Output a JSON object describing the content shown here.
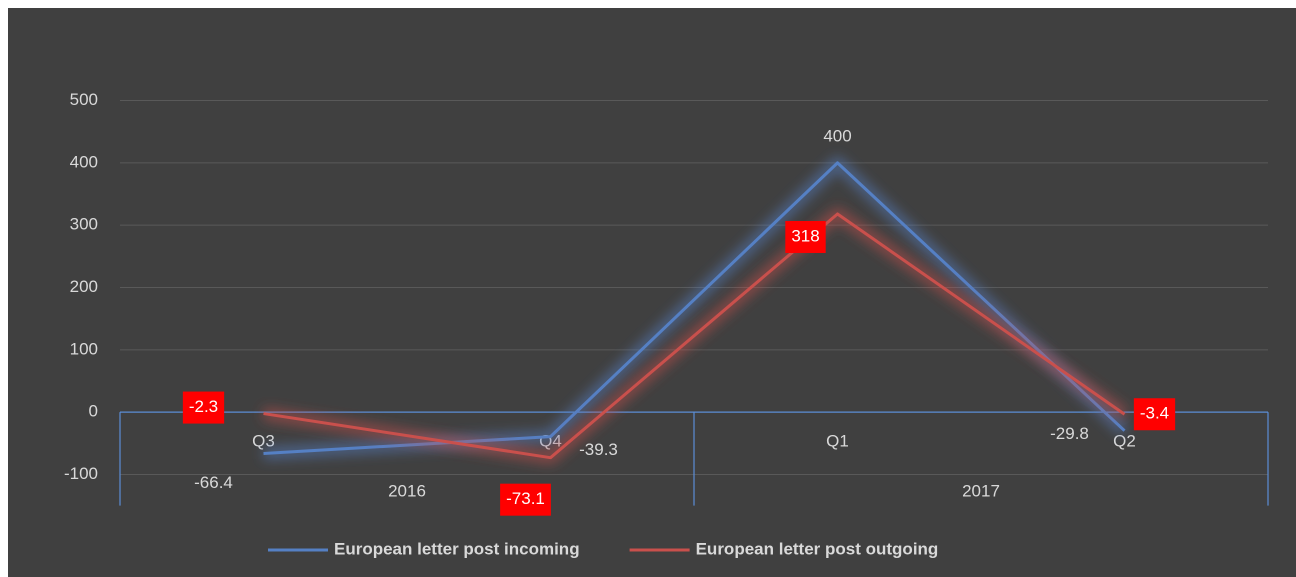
{
  "chart_data": {
    "type": "line",
    "categories": [
      "Q3",
      "Q4",
      "Q1",
      "Q2"
    ],
    "groups": [
      "2016",
      "2017"
    ],
    "series": [
      {
        "name": "European letter post incoming",
        "color": "#5580c4",
        "values": [
          -66.4,
          -39.3,
          400,
          -29.8
        ]
      },
      {
        "name": "European letter post outgoing",
        "color": "#c9504c",
        "values": [
          -2.3,
          -73.1,
          318,
          -3.4
        ]
      }
    ],
    "ylim": [
      -150,
      550
    ],
    "yticks": [
      -100,
      0,
      100,
      200,
      300,
      400,
      500
    ],
    "grid": true,
    "legend": "bottom"
  }
}
